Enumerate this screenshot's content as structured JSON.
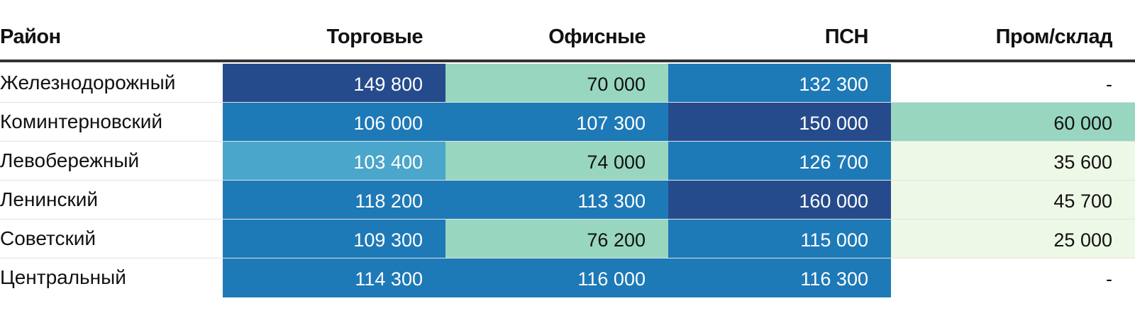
{
  "chart_data": {
    "type": "table",
    "columns": [
      "Район",
      "Торговые",
      "Офисные",
      "ПСН",
      "Пром/склад"
    ],
    "rows": [
      {
        "name": "Железнодорожный",
        "values": [
          "149 800",
          "70 000",
          "132 300",
          "-"
        ],
        "colors": [
          "#264b8c",
          "#98d6c0",
          "#1e79b7",
          ""
        ]
      },
      {
        "name": "Коминтерновский",
        "values": [
          "106 000",
          "107 300",
          "150 000",
          "60 000"
        ],
        "colors": [
          "#1e79b7",
          "#1e79b7",
          "#264b8c",
          "#98d6c0"
        ]
      },
      {
        "name": "Левобережный",
        "values": [
          "103 400",
          "74 000",
          "126 700",
          "35 600"
        ],
        "colors": [
          "#4aa6ca",
          "#98d6c0",
          "#1e79b7",
          "#eef8e6"
        ]
      },
      {
        "name": "Ленинский",
        "values": [
          "118 200",
          "113 300",
          "160 000",
          "45 700"
        ],
        "colors": [
          "#1e79b7",
          "#1e79b7",
          "#264b8c",
          "#eef8e6"
        ]
      },
      {
        "name": "Советский",
        "values": [
          "109 300",
          "76 200",
          "115 000",
          "25 000"
        ],
        "colors": [
          "#1e79b7",
          "#98d6c0",
          "#1e79b7",
          "#eef8e6"
        ]
      },
      {
        "name": "Центральный",
        "values": [
          "114 300",
          "116 000",
          "116 300",
          "-"
        ],
        "colors": [
          "#1e79b7",
          "#1e79b7",
          "#1e79b7",
          ""
        ]
      }
    ],
    "text_light": "#ffffff",
    "text_dark": "#111111"
  }
}
